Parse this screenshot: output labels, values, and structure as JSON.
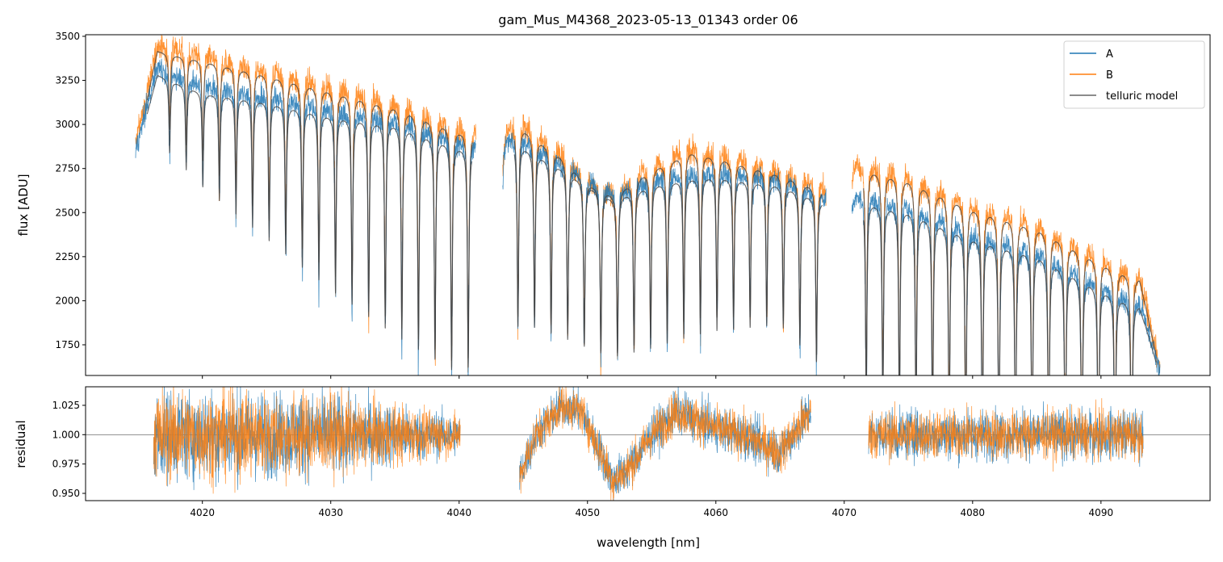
{
  "chart_data": {
    "type": "line",
    "title": "gam_Mus_M4368_2023-05-13_01343  order 06",
    "xlabel": "wavelength [nm]",
    "xlim": [
      4010.9,
      4098.5
    ],
    "xticks": [
      4020,
      4030,
      4040,
      4050,
      4060,
      4070,
      4080,
      4090
    ],
    "panels": [
      {
        "name": "flux",
        "ylabel": "flux [ADU]",
        "ylim": [
          1576,
          3509
        ],
        "yticks": [
          1750,
          2000,
          2250,
          2500,
          2750,
          3000,
          3250,
          3500
        ],
        "segments": [
          [
            4014.8,
            4041.3
          ],
          [
            4043.4,
            4068.6
          ],
          [
            4070.6,
            4094.6
          ]
        ],
        "series": [
          {
            "name": "A",
            "color": "#1f77b4",
            "noise": 45,
            "continuum": [
              [
                4014.8,
                2850
              ],
              [
                4015.5,
                3050
              ],
              [
                4016.5,
                3330
              ],
              [
                4020,
                3230
              ],
              [
                4025,
                3180
              ],
              [
                4030,
                3100
              ],
              [
                4035,
                3050
              ],
              [
                4040,
                2920
              ],
              [
                4041.3,
                2900
              ],
              [
                4043.4,
                2950
              ],
              [
                4045,
                2920
              ],
              [
                4048,
                2800
              ],
              [
                4050,
                2700
              ],
              [
                4052,
                2620
              ],
              [
                4055,
                2700
              ],
              [
                4058,
                2740
              ],
              [
                4060,
                2750
              ],
              [
                4065,
                2700
              ],
              [
                4068.6,
                2600
              ],
              [
                4070.6,
                2620
              ],
              [
                4075,
                2550
              ],
              [
                4080,
                2400
              ],
              [
                4085,
                2300
              ],
              [
                4090,
                2100
              ],
              [
                4093,
                2000
              ],
              [
                4094.6,
                1600
              ]
            ]
          },
          {
            "name": "B",
            "color": "#ff7f0e",
            "noise": 55,
            "continuum": [
              [
                4014.8,
                2900
              ],
              [
                4015.5,
                3100
              ],
              [
                4016.5,
                3450
              ],
              [
                4020,
                3400
              ],
              [
                4025,
                3320
              ],
              [
                4030,
                3230
              ],
              [
                4035,
                3140
              ],
              [
                4040,
                3000
              ],
              [
                4041.3,
                2980
              ],
              [
                4043.4,
                2980
              ],
              [
                4045,
                3010
              ],
              [
                4048,
                2850
              ],
              [
                4050,
                2700
              ],
              [
                4052,
                2630
              ],
              [
                4055,
                2780
              ],
              [
                4058,
                2880
              ],
              [
                4060,
                2850
              ],
              [
                4065,
                2750
              ],
              [
                4068.6,
                2650
              ],
              [
                4070.6,
                2800
              ],
              [
                4075,
                2720
              ],
              [
                4080,
                2560
              ],
              [
                4085,
                2450
              ],
              [
                4090,
                2250
              ],
              [
                4093,
                2150
              ],
              [
                4094.6,
                1600
              ]
            ]
          },
          {
            "name": "telluric model",
            "color": "#444444"
          }
        ],
        "lines": {
          "start": 4017.45,
          "spacing": 1.292,
          "end": 4093.4,
          "depth": [
            [
              4017,
              0.12
            ],
            [
              4025,
              0.25
            ],
            [
              4035,
              0.4
            ],
            [
              4040,
              0.45
            ],
            [
              4045,
              0.35
            ],
            [
              4055,
              0.35
            ],
            [
              4065,
              0.3
            ],
            [
              4072,
              0.45
            ],
            [
              4080,
              0.55
            ],
            [
              4093,
              0.6
            ]
          ]
        }
      },
      {
        "name": "residual",
        "ylabel": "residual",
        "ylim": [
          0.9438,
          1.0408
        ],
        "yticks": [
          0.95,
          0.975,
          1.0,
          1.025
        ],
        "reference": 1.0,
        "segments": [
          [
            4016.2,
            4040.1
          ],
          [
            4044.7,
            4067.4
          ],
          [
            4071.9,
            4093.3
          ]
        ],
        "trend": [
          [
            4016,
            1.0
          ],
          [
            4040,
            1.0
          ],
          [
            4044.7,
            0.965
          ],
          [
            4046,
            1.0
          ],
          [
            4048,
            1.025
          ],
          [
            4049.5,
            1.02
          ],
          [
            4051,
            0.985
          ],
          [
            4052,
            0.96
          ],
          [
            4053.5,
            0.975
          ],
          [
            4055,
            1.0
          ],
          [
            4057,
            1.02
          ],
          [
            4060,
            1.005
          ],
          [
            4062,
            1.0
          ],
          [
            4065,
            0.985
          ],
          [
            4067.4,
            1.02
          ],
          [
            4071.9,
            1.0
          ],
          [
            4093.3,
            1.0
          ]
        ],
        "noise": [
          [
            4016,
            0.028
          ],
          [
            4030,
            0.025
          ],
          [
            4040,
            0.012
          ],
          [
            4045,
            0.012
          ],
          [
            4067,
            0.014
          ],
          [
            4072,
            0.015
          ],
          [
            4093,
            0.015
          ]
        ]
      }
    ],
    "legend": {
      "placement": "upper right",
      "entries": [
        "A",
        "B",
        "telluric model"
      ]
    }
  }
}
